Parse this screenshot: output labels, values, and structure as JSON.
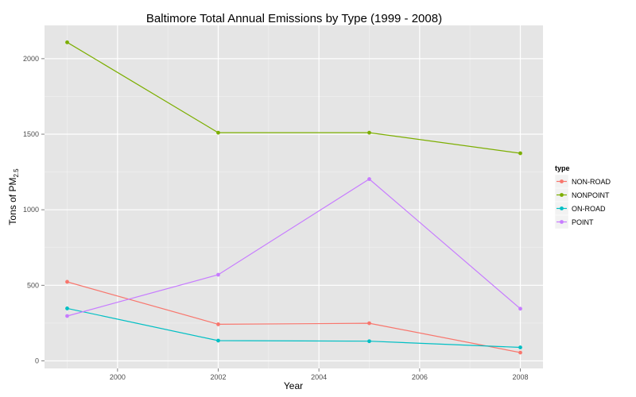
{
  "chart_data": {
    "type": "line",
    "title": "Baltimore Total Annual Emissions by Type (1999 - 2008)",
    "xlabel": "Year",
    "ylabel_main": "Tons of PM",
    "ylabel_sub": "2.5",
    "x": [
      1999,
      2002,
      2005,
      2008
    ],
    "xlim": [
      1998.55,
      2008.45
    ],
    "ylim": [
      -50,
      2220
    ],
    "x_ticks": [
      2000,
      2002,
      2004,
      2006,
      2008
    ],
    "x_tick_labels": [
      "2000",
      "2002",
      "2004",
      "2006",
      "2008"
    ],
    "y_ticks": [
      0,
      500,
      1000,
      1500,
      2000
    ],
    "y_tick_labels": [
      "0",
      "500",
      "1000",
      "1500",
      "2000"
    ],
    "grid": true,
    "legend_title": "type",
    "legend_position": "right",
    "series": [
      {
        "name": "NON-ROAD",
        "color": "#f8766d",
        "values": [
          523,
          242,
          249,
          55
        ]
      },
      {
        "name": "NONPOINT",
        "color": "#7cae00",
        "values": [
          2108,
          1510,
          1510,
          1374
        ]
      },
      {
        "name": "ON-ROAD",
        "color": "#00bfc4",
        "values": [
          347,
          134,
          130,
          89
        ]
      },
      {
        "name": "POINT",
        "color": "#c77cff",
        "values": [
          297,
          570,
          1203,
          345
        ]
      }
    ]
  }
}
